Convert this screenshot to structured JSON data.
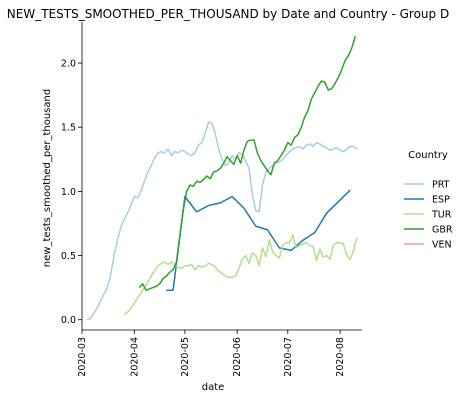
{
  "chart_data": {
    "type": "line",
    "title": "NEW_TESTS_SMOOTHED_PER_THOUSAND by Date and Country - Group D",
    "xlabel": "date",
    "ylabel": "new_tests_smoothed_per_thousand",
    "x_ticks": [
      "2020-03",
      "2020-04",
      "2020-05",
      "2020-06",
      "2020-07",
      "2020-08"
    ],
    "x_range": [
      "2020-03-01",
      "2020-08-14"
    ],
    "y_ticks": [
      "0.0",
      "0.5",
      "1.0",
      "1.5",
      "2.0"
    ],
    "ylim": [
      -0.08,
      2.32
    ],
    "grid": false,
    "legend": {
      "title": "Country",
      "position": "right"
    },
    "series": [
      {
        "name": "PRT",
        "color": "#a6cee3",
        "points": [
          [
            "2020-03-04",
            0.0
          ],
          [
            "2020-03-06",
            0.01
          ],
          [
            "2020-03-08",
            0.05
          ],
          [
            "2020-03-10",
            0.09
          ],
          [
            "2020-03-12",
            0.15
          ],
          [
            "2020-03-14",
            0.2
          ],
          [
            "2020-03-16",
            0.25
          ],
          [
            "2020-03-18",
            0.35
          ],
          [
            "2020-03-20",
            0.5
          ],
          [
            "2020-03-22",
            0.62
          ],
          [
            "2020-03-24",
            0.72
          ],
          [
            "2020-03-26",
            0.78
          ],
          [
            "2020-03-28",
            0.83
          ],
          [
            "2020-03-30",
            0.89
          ],
          [
            "2020-04-01",
            0.96
          ],
          [
            "2020-04-03",
            0.95
          ],
          [
            "2020-04-05",
            1.0
          ],
          [
            "2020-04-07",
            1.08
          ],
          [
            "2020-04-09",
            1.15
          ],
          [
            "2020-04-11",
            1.2
          ],
          [
            "2020-04-13",
            1.26
          ],
          [
            "2020-04-15",
            1.3
          ],
          [
            "2020-04-17",
            1.31
          ],
          [
            "2020-04-19",
            1.3
          ],
          [
            "2020-04-21",
            1.33
          ],
          [
            "2020-04-23",
            1.28
          ],
          [
            "2020-04-25",
            1.31
          ],
          [
            "2020-04-27",
            1.3
          ],
          [
            "2020-04-29",
            1.32
          ],
          [
            "2020-05-01",
            1.31
          ],
          [
            "2020-05-03",
            1.29
          ],
          [
            "2020-05-05",
            1.28
          ],
          [
            "2020-05-07",
            1.3
          ],
          [
            "2020-05-09",
            1.36
          ],
          [
            "2020-05-11",
            1.38
          ],
          [
            "2020-05-13",
            1.45
          ],
          [
            "2020-05-15",
            1.54
          ],
          [
            "2020-05-17",
            1.53
          ],
          [
            "2020-05-19",
            1.45
          ],
          [
            "2020-05-21",
            1.33
          ],
          [
            "2020-05-23",
            1.25
          ],
          [
            "2020-05-25",
            1.2
          ],
          [
            "2020-05-27",
            1.22
          ],
          [
            "2020-05-29",
            1.28
          ],
          [
            "2020-05-31",
            1.25
          ],
          [
            "2020-06-02",
            1.3
          ],
          [
            "2020-06-04",
            1.29
          ],
          [
            "2020-06-06",
            1.24
          ],
          [
            "2020-06-08",
            1.18
          ],
          [
            "2020-06-10",
            0.98
          ],
          [
            "2020-06-12",
            0.85
          ],
          [
            "2020-06-14",
            0.84
          ],
          [
            "2020-06-16",
            1.05
          ],
          [
            "2020-06-18",
            1.15
          ],
          [
            "2020-06-20",
            1.18
          ],
          [
            "2020-06-22",
            1.2
          ],
          [
            "2020-06-24",
            1.22
          ],
          [
            "2020-06-26",
            1.23
          ],
          [
            "2020-06-28",
            1.25
          ],
          [
            "2020-06-30",
            1.28
          ],
          [
            "2020-07-02",
            1.31
          ],
          [
            "2020-07-04",
            1.33
          ],
          [
            "2020-07-06",
            1.34
          ],
          [
            "2020-07-08",
            1.35
          ],
          [
            "2020-07-10",
            1.33
          ],
          [
            "2020-07-12",
            1.36
          ],
          [
            "2020-07-14",
            1.37
          ],
          [
            "2020-07-16",
            1.35
          ],
          [
            "2020-07-18",
            1.38
          ],
          [
            "2020-07-20",
            1.37
          ],
          [
            "2020-07-22",
            1.35
          ],
          [
            "2020-07-24",
            1.34
          ],
          [
            "2020-07-26",
            1.32
          ],
          [
            "2020-07-28",
            1.33
          ],
          [
            "2020-07-30",
            1.34
          ],
          [
            "2020-08-01",
            1.32
          ],
          [
            "2020-08-03",
            1.31
          ],
          [
            "2020-08-05",
            1.33
          ],
          [
            "2020-08-07",
            1.35
          ],
          [
            "2020-08-09",
            1.35
          ],
          [
            "2020-08-11",
            1.33
          ]
        ]
      },
      {
        "name": "ESP",
        "color": "#1f78b4",
        "points": [
          [
            "2020-04-20",
            0.23
          ],
          [
            "2020-04-24",
            0.23
          ],
          [
            "2020-05-01",
            0.96
          ],
          [
            "2020-05-08",
            0.84
          ],
          [
            "2020-05-15",
            0.89
          ],
          [
            "2020-05-22",
            0.91
          ],
          [
            "2020-05-29",
            0.96
          ],
          [
            "2020-06-05",
            0.87
          ],
          [
            "2020-06-12",
            0.73
          ],
          [
            "2020-06-19",
            0.7
          ],
          [
            "2020-06-26",
            0.56
          ],
          [
            "2020-07-03",
            0.54
          ],
          [
            "2020-07-10",
            0.62
          ],
          [
            "2020-07-17",
            0.68
          ],
          [
            "2020-07-24",
            0.83
          ],
          [
            "2020-07-31",
            0.92
          ],
          [
            "2020-08-07",
            1.01
          ]
        ]
      },
      {
        "name": "TUR",
        "color": "#b2df8a",
        "points": [
          [
            "2020-03-26",
            0.04
          ],
          [
            "2020-03-28",
            0.06
          ],
          [
            "2020-03-30",
            0.09
          ],
          [
            "2020-04-01",
            0.13
          ],
          [
            "2020-04-03",
            0.17
          ],
          [
            "2020-04-05",
            0.21
          ],
          [
            "2020-04-07",
            0.25
          ],
          [
            "2020-04-09",
            0.29
          ],
          [
            "2020-04-11",
            0.34
          ],
          [
            "2020-04-13",
            0.38
          ],
          [
            "2020-04-15",
            0.42
          ],
          [
            "2020-04-17",
            0.44
          ],
          [
            "2020-04-19",
            0.45
          ],
          [
            "2020-04-21",
            0.43
          ],
          [
            "2020-04-23",
            0.45
          ],
          [
            "2020-04-25",
            0.43
          ],
          [
            "2020-04-27",
            0.41
          ],
          [
            "2020-04-29",
            0.4
          ],
          [
            "2020-05-01",
            0.42
          ],
          [
            "2020-05-03",
            0.42
          ],
          [
            "2020-05-05",
            0.43
          ],
          [
            "2020-05-07",
            0.39
          ],
          [
            "2020-05-09",
            0.42
          ],
          [
            "2020-05-11",
            0.41
          ],
          [
            "2020-05-13",
            0.42
          ],
          [
            "2020-05-15",
            0.44
          ],
          [
            "2020-05-17",
            0.43
          ],
          [
            "2020-05-19",
            0.41
          ],
          [
            "2020-05-21",
            0.38
          ],
          [
            "2020-05-23",
            0.36
          ],
          [
            "2020-05-25",
            0.34
          ],
          [
            "2020-05-27",
            0.33
          ],
          [
            "2020-05-29",
            0.33
          ],
          [
            "2020-05-31",
            0.34
          ],
          [
            "2020-06-02",
            0.4
          ],
          [
            "2020-06-04",
            0.47
          ],
          [
            "2020-06-06",
            0.5
          ],
          [
            "2020-06-08",
            0.44
          ],
          [
            "2020-06-10",
            0.52
          ],
          [
            "2020-06-12",
            0.5
          ],
          [
            "2020-06-14",
            0.42
          ],
          [
            "2020-06-16",
            0.56
          ],
          [
            "2020-06-18",
            0.49
          ],
          [
            "2020-06-20",
            0.62
          ],
          [
            "2020-06-22",
            0.53
          ],
          [
            "2020-06-24",
            0.5
          ],
          [
            "2020-06-26",
            0.48
          ],
          [
            "2020-06-28",
            0.58
          ],
          [
            "2020-06-30",
            0.6
          ],
          [
            "2020-07-02",
            0.6
          ],
          [
            "2020-07-04",
            0.66
          ],
          [
            "2020-07-06",
            0.56
          ],
          [
            "2020-07-08",
            0.58
          ],
          [
            "2020-07-10",
            0.59
          ],
          [
            "2020-07-12",
            0.6
          ],
          [
            "2020-07-14",
            0.58
          ],
          [
            "2020-07-16",
            0.57
          ],
          [
            "2020-07-18",
            0.46
          ],
          [
            "2020-07-20",
            0.55
          ],
          [
            "2020-07-22",
            0.49
          ],
          [
            "2020-07-24",
            0.5
          ],
          [
            "2020-07-26",
            0.47
          ],
          [
            "2020-07-28",
            0.58
          ],
          [
            "2020-07-30",
            0.6
          ],
          [
            "2020-08-01",
            0.6
          ],
          [
            "2020-08-03",
            0.59
          ],
          [
            "2020-08-05",
            0.5
          ],
          [
            "2020-08-07",
            0.47
          ],
          [
            "2020-08-09",
            0.54
          ],
          [
            "2020-08-11",
            0.64
          ]
        ]
      },
      {
        "name": "GBR",
        "color": "#33a02c",
        "points": [
          [
            "2020-04-04",
            0.25
          ],
          [
            "2020-04-06",
            0.28
          ],
          [
            "2020-04-08",
            0.23
          ],
          [
            "2020-04-10",
            0.24
          ],
          [
            "2020-04-12",
            0.25
          ],
          [
            "2020-04-14",
            0.26
          ],
          [
            "2020-04-16",
            0.28
          ],
          [
            "2020-04-18",
            0.32
          ],
          [
            "2020-04-20",
            0.34
          ],
          [
            "2020-04-22",
            0.37
          ],
          [
            "2020-04-24",
            0.39
          ],
          [
            "2020-04-26",
            0.45
          ],
          [
            "2020-04-28",
            0.65
          ],
          [
            "2020-04-30",
            0.85
          ],
          [
            "2020-05-02",
            1.0
          ],
          [
            "2020-05-04",
            1.05
          ],
          [
            "2020-05-06",
            1.04
          ],
          [
            "2020-05-08",
            1.08
          ],
          [
            "2020-05-10",
            1.07
          ],
          [
            "2020-05-12",
            1.09
          ],
          [
            "2020-05-14",
            1.12
          ],
          [
            "2020-05-16",
            1.1
          ],
          [
            "2020-05-18",
            1.15
          ],
          [
            "2020-05-20",
            1.16
          ],
          [
            "2020-05-22",
            1.18
          ],
          [
            "2020-05-24",
            1.22
          ],
          [
            "2020-05-26",
            1.27
          ],
          [
            "2020-05-28",
            1.24
          ],
          [
            "2020-05-30",
            1.21
          ],
          [
            "2020-06-01",
            1.28
          ],
          [
            "2020-06-03",
            1.22
          ],
          [
            "2020-06-05",
            1.32
          ],
          [
            "2020-06-07",
            1.39
          ],
          [
            "2020-06-09",
            1.4
          ],
          [
            "2020-06-11",
            1.4
          ],
          [
            "2020-06-13",
            1.3
          ],
          [
            "2020-06-15",
            1.24
          ],
          [
            "2020-06-17",
            1.2
          ],
          [
            "2020-06-19",
            1.16
          ],
          [
            "2020-06-21",
            1.13
          ],
          [
            "2020-06-23",
            1.22
          ],
          [
            "2020-06-25",
            1.24
          ],
          [
            "2020-06-27",
            1.28
          ],
          [
            "2020-06-29",
            1.32
          ],
          [
            "2020-07-01",
            1.38
          ],
          [
            "2020-07-03",
            1.36
          ],
          [
            "2020-07-05",
            1.42
          ],
          [
            "2020-07-07",
            1.44
          ],
          [
            "2020-07-09",
            1.5
          ],
          [
            "2020-07-11",
            1.58
          ],
          [
            "2020-07-13",
            1.63
          ],
          [
            "2020-07-15",
            1.72
          ],
          [
            "2020-07-17",
            1.77
          ],
          [
            "2020-07-19",
            1.82
          ],
          [
            "2020-07-21",
            1.86
          ],
          [
            "2020-07-23",
            1.85
          ],
          [
            "2020-07-25",
            1.79
          ],
          [
            "2020-07-27",
            1.8
          ],
          [
            "2020-07-29",
            1.84
          ],
          [
            "2020-07-31",
            1.89
          ],
          [
            "2020-08-02",
            1.95
          ],
          [
            "2020-08-04",
            2.02
          ],
          [
            "2020-08-06",
            2.06
          ],
          [
            "2020-08-08",
            2.12
          ],
          [
            "2020-08-10",
            2.21
          ]
        ]
      },
      {
        "name": "VEN",
        "color": "#fb9a99",
        "points": []
      }
    ]
  }
}
